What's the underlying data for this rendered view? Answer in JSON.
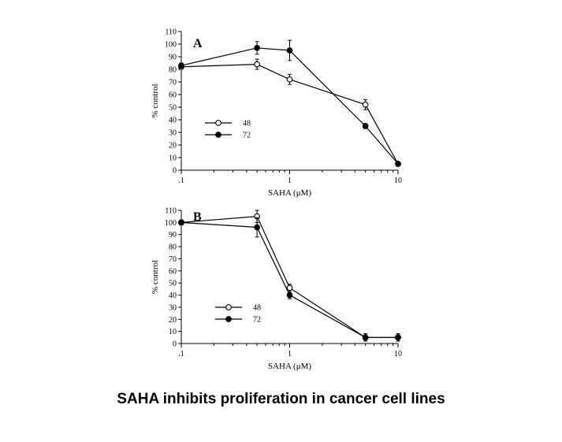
{
  "caption": "SAHA inhibits proliferation in cancer cell lines",
  "colors": {
    "ink": "#000000",
    "open_marker_fill": "#ffffff",
    "filled_marker_fill": "#000000"
  },
  "chart_data": [
    {
      "type": "line",
      "panel": "A",
      "xlabel": "SAHA (μM)",
      "ylabel": "% control",
      "x_scale": "log",
      "xlim": [
        0.1,
        10
      ],
      "ylim": [
        0,
        110
      ],
      "x_ticks": [
        0.1,
        1,
        10
      ],
      "x_tick_labels": [
        ".1",
        "1",
        "10"
      ],
      "y_ticks": [
        0,
        10,
        20,
        30,
        40,
        50,
        60,
        70,
        80,
        90,
        100,
        110
      ],
      "legend_placement": "middle-left",
      "grid": false,
      "series": [
        {
          "name": "48",
          "marker": "open-circle",
          "x": [
            0.1,
            0.5,
            1,
            5,
            10
          ],
          "values": [
            82,
            84,
            72,
            52,
            5
          ],
          "errors": [
            2,
            4,
            4,
            4,
            1
          ]
        },
        {
          "name": "72",
          "marker": "filled-circle",
          "x": [
            0.1,
            0.5,
            1,
            5,
            10
          ],
          "values": [
            83,
            97,
            95,
            35,
            5
          ],
          "errors": [
            2,
            5,
            8,
            2,
            1
          ]
        }
      ]
    },
    {
      "type": "line",
      "panel": "B",
      "xlabel": "SAHA (μM)",
      "ylabel": "% control",
      "x_scale": "log",
      "xlim": [
        0.1,
        10
      ],
      "ylim": [
        0,
        110
      ],
      "x_ticks": [
        0.1,
        1,
        10
      ],
      "x_tick_labels": [
        ".1",
        "1",
        "10"
      ],
      "y_ticks": [
        0,
        10,
        20,
        30,
        40,
        50,
        60,
        70,
        80,
        90,
        100,
        110
      ],
      "legend_placement": "lower-left",
      "grid": false,
      "series": [
        {
          "name": "48",
          "marker": "open-circle",
          "x": [
            0.1,
            0.5,
            1,
            5,
            10
          ],
          "values": [
            100,
            105,
            46,
            5,
            5
          ],
          "errors": [
            2,
            5,
            3,
            3,
            3
          ]
        },
        {
          "name": "72",
          "marker": "filled-circle",
          "x": [
            0.1,
            0.5,
            1,
            5,
            10
          ],
          "values": [
            100,
            96,
            40,
            5,
            5
          ],
          "errors": [
            2,
            8,
            3,
            3,
            3
          ]
        }
      ]
    }
  ]
}
